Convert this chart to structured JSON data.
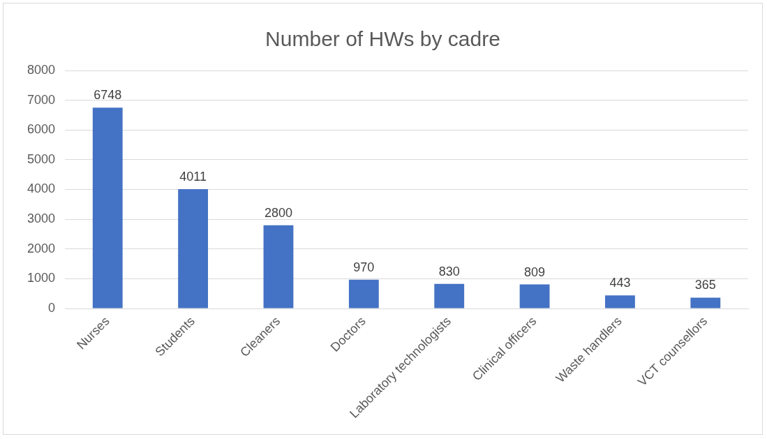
{
  "chart_data": {
    "type": "bar",
    "title": "Number of HWs by cadre",
    "categories": [
      "Nurses",
      "Students",
      "Cleaners",
      "Doctors",
      "Laboratory technologists",
      "Clinical officers",
      "Waste handlers",
      "VCT counsellors"
    ],
    "values": [
      6748,
      4011,
      2800,
      970,
      830,
      809,
      443,
      365
    ],
    "color": "#4472c4",
    "ylim": [
      0,
      8000
    ],
    "yticks": [
      0,
      1000,
      2000,
      3000,
      4000,
      5000,
      6000,
      7000,
      8000
    ],
    "grid": "y",
    "data_labels": true,
    "legend": false
  }
}
